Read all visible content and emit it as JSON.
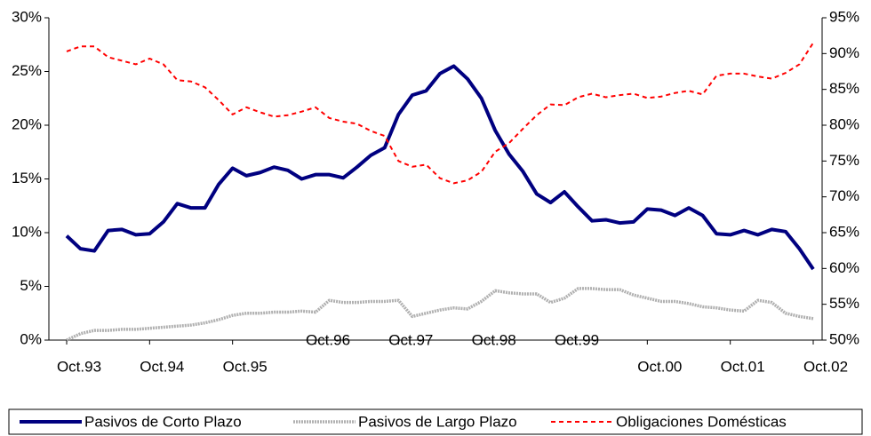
{
  "chart_data": {
    "type": "line",
    "categories": [
      "Oct.93",
      null,
      null,
      null,
      null,
      null,
      "Oct.94",
      null,
      null,
      null,
      null,
      null,
      "Oct.95",
      null,
      null,
      null,
      null,
      null,
      "Oct.96",
      null,
      null,
      null,
      null,
      null,
      "Oct.97",
      null,
      null,
      null,
      null,
      null,
      "Oct.98",
      null,
      null,
      null,
      null,
      null,
      "Oct.99",
      null,
      null,
      null,
      null,
      null,
      "Oct.00",
      null,
      null,
      null,
      null,
      null,
      "Oct.01",
      null,
      null,
      null,
      null,
      null,
      "Oct.02"
    ],
    "series": [
      {
        "name": "Pasivos de Corto Plazo",
        "color": "#000080",
        "axis": "y",
        "values": [
          9.7,
          8.5,
          8.3,
          10.2,
          10.3,
          9.8,
          9.9,
          11.0,
          12.7,
          12.3,
          12.3,
          14.5,
          16.0,
          15.3,
          15.6,
          16.1,
          15.8,
          15.0,
          15.4,
          15.4,
          15.1,
          16.1,
          17.2,
          17.9,
          21.0,
          22.8,
          23.2,
          24.8,
          25.5,
          24.3,
          22.5,
          19.5,
          17.3,
          15.7,
          13.6,
          12.8,
          13.8,
          12.4,
          11.1,
          11.2,
          10.9,
          11.0,
          12.2,
          12.1,
          11.6,
          12.3,
          11.6,
          9.9,
          9.8,
          10.2,
          9.8,
          10.3,
          10.1,
          8.5,
          6.6
        ]
      },
      {
        "name": "Pasivos de Largo Plazo",
        "color": "#b0b0b0",
        "axis": "y",
        "values": [
          0.0,
          0.6,
          0.9,
          0.9,
          1.0,
          1.0,
          1.1,
          1.2,
          1.3,
          1.4,
          1.6,
          1.9,
          2.3,
          2.5,
          2.5,
          2.6,
          2.6,
          2.7,
          2.6,
          3.7,
          3.5,
          3.5,
          3.6,
          3.6,
          3.7,
          2.2,
          2.5,
          2.8,
          3.0,
          2.9,
          3.6,
          4.6,
          4.4,
          4.3,
          4.3,
          3.5,
          3.9,
          4.8,
          4.8,
          4.7,
          4.7,
          4.2,
          3.9,
          3.6,
          3.6,
          3.4,
          3.1,
          3.0,
          2.8,
          2.7,
          3.7,
          3.5,
          2.5,
          2.2,
          2.0
        ]
      },
      {
        "name": "Obligaciones Domésticas",
        "color": "#ff0000",
        "axis": "y2",
        "values": [
          90.3,
          91.0,
          91.0,
          89.5,
          89.0,
          88.5,
          89.3,
          88.5,
          86.3,
          86.1,
          85.3,
          83.5,
          81.5,
          82.5,
          81.8,
          81.2,
          81.4,
          81.9,
          82.5,
          81.0,
          80.5,
          80.2,
          79.2,
          78.5,
          75.0,
          74.2,
          74.5,
          72.6,
          71.9,
          72.3,
          73.5,
          76.3,
          77.5,
          79.5,
          81.4,
          82.9,
          82.8,
          83.9,
          84.4,
          83.9,
          84.2,
          84.4,
          83.8,
          84.0,
          84.5,
          84.8,
          84.3,
          86.9,
          87.2,
          87.2,
          86.8,
          86.5,
          87.3,
          88.5,
          91.5
        ]
      }
    ],
    "ylim": [
      0,
      30
    ],
    "yticks": [
      {
        "value": 0,
        "label": "0%"
      },
      {
        "value": 5,
        "label": "5%"
      },
      {
        "value": 10,
        "label": "10%"
      },
      {
        "value": 15,
        "label": "15%"
      },
      {
        "value": 20,
        "label": "20%"
      },
      {
        "value": 25,
        "label": "25%"
      },
      {
        "value": 30,
        "label": "30%"
      }
    ],
    "y2lim": [
      50,
      95
    ],
    "y2ticks": [
      {
        "value": 50,
        "label": "50%"
      },
      {
        "value": 55,
        "label": "55%"
      },
      {
        "value": 60,
        "label": "60%"
      },
      {
        "value": 65,
        "label": "65%"
      },
      {
        "value": 70,
        "label": "70%"
      },
      {
        "value": 75,
        "label": "75%"
      },
      {
        "value": 80,
        "label": "80%"
      },
      {
        "value": 85,
        "label": "85%"
      },
      {
        "value": 90,
        "label": "90%"
      },
      {
        "value": 95,
        "label": "95%"
      }
    ],
    "grid": false,
    "legend": "bottom"
  }
}
